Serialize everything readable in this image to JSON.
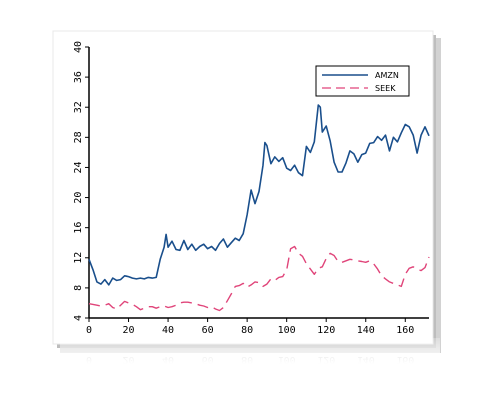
{
  "colors": {
    "amzn": "#1a4f8c",
    "seek": "#e0457a",
    "axis": "#000000",
    "frame_shadow": "#b9b9b9",
    "reflection": "#c4c4c4"
  },
  "chart_data": {
    "type": "line",
    "xlim": [
      0,
      172
    ],
    "ylim": [
      4,
      40
    ],
    "xticks": [
      0,
      20,
      40,
      60,
      80,
      100,
      120,
      140,
      160
    ],
    "yticks": [
      4,
      8,
      12,
      16,
      20,
      24,
      28,
      32,
      36,
      40
    ],
    "grid": false,
    "legend": {
      "placement": "top-right",
      "entries": [
        "AMZN",
        "SEEK"
      ]
    },
    "series": [
      {
        "name": "AMZN",
        "style": "solid",
        "x": [
          0,
          2,
          4,
          6,
          8,
          10,
          12,
          14,
          16,
          18,
          20,
          22,
          24,
          26,
          28,
          30,
          32,
          34,
          36,
          38,
          39,
          40,
          42,
          44,
          46,
          48,
          50,
          52,
          54,
          56,
          58,
          60,
          62,
          64,
          66,
          68,
          70,
          72,
          74,
          76,
          78,
          80,
          82,
          84,
          86,
          88,
          89,
          90,
          92,
          94,
          96,
          98,
          100,
          102,
          104,
          106,
          108,
          110,
          112,
          114,
          116,
          117,
          118,
          120,
          122,
          124,
          126,
          128,
          130,
          132,
          134,
          136,
          138,
          140,
          142,
          144,
          146,
          148,
          150,
          152,
          154,
          156,
          158,
          160,
          162,
          164,
          166,
          168,
          170,
          172
        ],
        "values": [
          11.8,
          10.4,
          8.8,
          8.5,
          9.1,
          8.4,
          9.3,
          9.0,
          9.1,
          9.6,
          9.5,
          9.3,
          9.2,
          9.3,
          9.2,
          9.4,
          9.3,
          9.4,
          11.8,
          13.4,
          15.1,
          13.4,
          14.2,
          13.1,
          13.0,
          14.3,
          13.1,
          13.8,
          13.0,
          13.5,
          13.8,
          13.2,
          13.5,
          13.0,
          13.9,
          14.5,
          13.4,
          14.0,
          14.6,
          14.3,
          15.2,
          17.7,
          21.0,
          19.2,
          20.8,
          24.3,
          27.3,
          26.9,
          24.5,
          25.4,
          24.8,
          25.3,
          23.9,
          23.6,
          24.3,
          23.3,
          22.9,
          26.8,
          26.0,
          27.4,
          32.3,
          32.0,
          28.7,
          29.5,
          27.5,
          24.7,
          23.4,
          23.4,
          24.6,
          26.2,
          25.8,
          24.7,
          25.7,
          25.9,
          27.2,
          27.3,
          28.1,
          27.6,
          28.3,
          26.2,
          28.0,
          27.4,
          28.6,
          29.7,
          29.4,
          28.3,
          25.9,
          28.3,
          29.4,
          28.2
        ]
      },
      {
        "name": "SEEK",
        "style": "dashed",
        "x": [
          0,
          2,
          4,
          6,
          8,
          10,
          12,
          14,
          16,
          18,
          20,
          22,
          24,
          26,
          28,
          30,
          32,
          34,
          36,
          38,
          40,
          42,
          44,
          46,
          48,
          50,
          52,
          54,
          56,
          58,
          60,
          62,
          64,
          66,
          68,
          70,
          72,
          74,
          76,
          78,
          80,
          82,
          84,
          86,
          88,
          90,
          92,
          94,
          96,
          98,
          100,
          102,
          104,
          106,
          108,
          110,
          112,
          114,
          116,
          118,
          120,
          122,
          124,
          126,
          128,
          130,
          132,
          134,
          136,
          138,
          140,
          142,
          144,
          146,
          148,
          150,
          152,
          154,
          156,
          158,
          160,
          162,
          164,
          166,
          168,
          170,
          172
        ],
        "values": [
          5.9,
          5.8,
          5.7,
          5.6,
          5.7,
          5.9,
          5.4,
          5.2,
          5.7,
          6.2,
          6.0,
          5.8,
          5.5,
          5.1,
          5.3,
          5.5,
          5.5,
          5.3,
          5.5,
          5.6,
          5.4,
          5.5,
          5.7,
          6.0,
          6.1,
          6.1,
          6.0,
          5.9,
          5.7,
          5.6,
          5.4,
          5.5,
          5.2,
          5.0,
          5.4,
          6.3,
          7.2,
          8.2,
          8.3,
          8.6,
          8.1,
          8.4,
          8.8,
          8.7,
          8.2,
          8.5,
          9.2,
          9.0,
          9.4,
          9.5,
          10.4,
          13.2,
          13.5,
          12.6,
          12.2,
          11.2,
          10.5,
          9.8,
          10.6,
          10.8,
          11.9,
          12.6,
          12.3,
          11.5,
          11.4,
          11.6,
          11.8,
          11.7,
          11.6,
          11.5,
          11.4,
          11.6,
          11.2,
          10.5,
          9.6,
          9.2,
          8.8,
          8.6,
          8.4,
          8.2,
          9.8,
          10.6,
          10.8,
          10.5,
          10.3,
          10.7,
          12.1
        ]
      }
    ]
  }
}
